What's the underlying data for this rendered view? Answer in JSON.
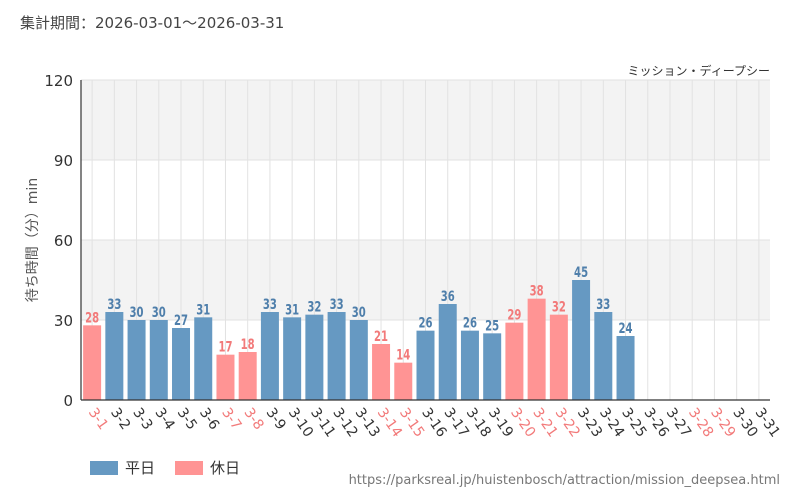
{
  "header": {
    "period_label": "集計期間：2026-03-01～2026-03-31"
  },
  "legend": {
    "weekday_label": "平日",
    "holiday_label": "休日"
  },
  "footer": {
    "source_url": "https://parksreal.jp/huistenbosch/attraction/mission_deepsea.html"
  },
  "colors": {
    "weekday": "#6699c2",
    "holiday": "#ff9494",
    "weekday_text": "#4f7fab",
    "holiday_text": "#f27a7a",
    "band": "#f3f3f3",
    "grid": "#e2e2e2"
  },
  "chart_data": {
    "type": "bar",
    "title": "ミッション・ディープシー",
    "xlabel": "",
    "ylabel": "待ち時間（分）min",
    "ylim": [
      0,
      120
    ],
    "yticks": [
      0,
      30,
      60,
      90,
      120
    ],
    "categories": [
      "3-1",
      "3-2",
      "3-3",
      "3-4",
      "3-5",
      "3-6",
      "3-7",
      "3-8",
      "3-9",
      "3-10",
      "3-11",
      "3-12",
      "3-13",
      "3-14",
      "3-15",
      "3-16",
      "3-17",
      "3-18",
      "3-19",
      "3-20",
      "3-21",
      "3-22",
      "3-23",
      "3-24",
      "3-25",
      "3-26",
      "3-27",
      "3-28",
      "3-29",
      "3-30",
      "3-31"
    ],
    "values": [
      28,
      33,
      30,
      30,
      27,
      31,
      17,
      18,
      33,
      31,
      32,
      33,
      30,
      21,
      14,
      26,
      36,
      26,
      25,
      29,
      38,
      32,
      45,
      33,
      24,
      null,
      null,
      null,
      null,
      null,
      null
    ],
    "day_types": [
      "holiday",
      "weekday",
      "weekday",
      "weekday",
      "weekday",
      "weekday",
      "holiday",
      "holiday",
      "weekday",
      "weekday",
      "weekday",
      "weekday",
      "weekday",
      "holiday",
      "holiday",
      "weekday",
      "weekday",
      "weekday",
      "weekday",
      "holiday",
      "holiday",
      "holiday",
      "weekday",
      "weekday",
      "weekday",
      "weekday",
      "weekday",
      "holiday",
      "holiday",
      "weekday",
      "weekday"
    ],
    "series": [
      {
        "name": "平日",
        "type": "weekday"
      },
      {
        "name": "休日",
        "type": "holiday"
      }
    ]
  }
}
